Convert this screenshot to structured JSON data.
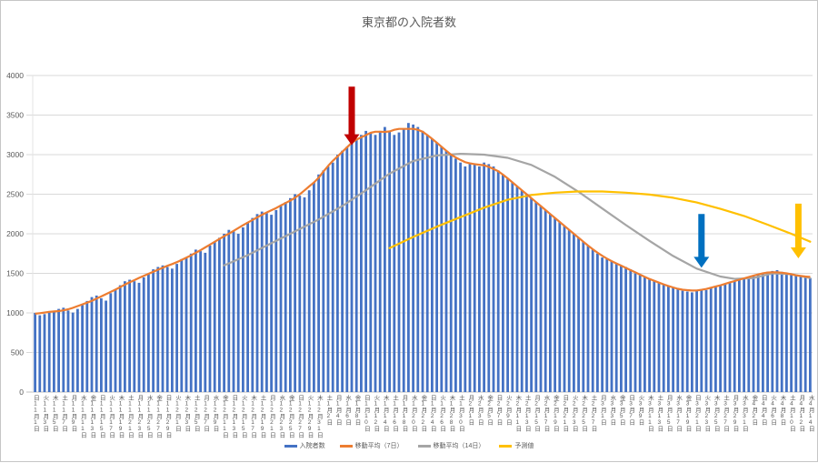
{
  "title": "東京都の入院者数",
  "chart_data": {
    "type": "bar",
    "title": "東京都の入院者数",
    "xlabel": "",
    "ylabel": "",
    "ylim": [
      0,
      4000
    ],
    "y_ticks": [
      0,
      500,
      1000,
      1500,
      2000,
      2500,
      3000,
      3500,
      4000
    ],
    "grid": "horizontal",
    "legend_position": "bottom",
    "x_start_date": "11月1日",
    "x_end_date": "4月14日",
    "x_tick_labels": [
      "日11月1日",
      "火11月3日",
      "木11月5日",
      "土11月7日",
      "月11月9日",
      "水11月11日",
      "金11月13日",
      "日11月15日",
      "火11月17日",
      "木11月19日",
      "土11月21日",
      "月11月23日",
      "水11月25日",
      "金11月27日",
      "日11月29日",
      "火12月1日",
      "木12月3日",
      "土12月5日",
      "月12月7日",
      "水12月9日",
      "金12月11日",
      "日12月13日",
      "火12月15日",
      "木12月17日",
      "土12月19日",
      "月12月21日",
      "水12月23日",
      "金12月25日",
      "日12月27日",
      "火12月29日",
      "木12月31日",
      "土1月2日",
      "月1月4日",
      "水1月6日",
      "金1月8日",
      "日1月10日",
      "火1月12日",
      "木1月14日",
      "土1月16日",
      "月1月18日",
      "水1月20日",
      "金1月22日",
      "日1月24日",
      "火1月26日",
      "木1月28日",
      "土1月30日",
      "月2月1日",
      "水2月3日",
      "金2月5日",
      "日2月7日",
      "火2月9日",
      "木2月11日",
      "土2月13日",
      "月2月15日",
      "水2月17日",
      "金2月19日",
      "日2月21日",
      "火2月23日",
      "木2月25日",
      "土2月27日",
      "月3月1日",
      "水3月3日",
      "金3月5日",
      "日3月7日",
      "火3月9日",
      "木3月11日",
      "土3月13日",
      "月3月15日",
      "水3月17日",
      "金3月19日",
      "日3月21日",
      "火3月23日",
      "木3月25日",
      "土3月27日",
      "月3月29日",
      "水3月31日",
      "金4月2日",
      "日4月4日",
      "火4月6日",
      "木4月8日",
      "土4月10日",
      "月4月12日",
      "水4月14日"
    ],
    "series": [
      {
        "name": "入院者数",
        "type": "bar",
        "color": "#4472C4",
        "values": [
          1000,
          970,
          985,
          1005,
          1020,
          1050,
          1065,
          1030,
          1005,
          1050,
          1100,
          1150,
          1200,
          1220,
          1185,
          1155,
          1250,
          1300,
          1350,
          1400,
          1420,
          1400,
          1380,
          1450,
          1500,
          1550,
          1580,
          1600,
          1580,
          1560,
          1620,
          1680,
          1700,
          1750,
          1800,
          1780,
          1760,
          1850,
          1900,
          1950,
          2000,
          2050,
          2030,
          2000,
          2080,
          2150,
          2200,
          2250,
          2280,
          2260,
          2240,
          2300,
          2350,
          2400,
          2450,
          2500,
          2480,
          2460,
          2550,
          2650,
          2750,
          2800,
          2850,
          2900,
          3000,
          3050,
          3100,
          3150,
          3200,
          3250,
          3300,
          3280,
          3250,
          3300,
          3350,
          3300,
          3250,
          3280,
          3320,
          3400,
          3380,
          3350,
          3300,
          3250,
          3200,
          3150,
          3100,
          3050,
          3000,
          2950,
          2900,
          2850,
          2900,
          2880,
          2850,
          2900,
          2880,
          2850,
          2800,
          2750,
          2700,
          2650,
          2600,
          2550,
          2500,
          2450,
          2400,
          2350,
          2300,
          2250,
          2200,
          2150,
          2100,
          2050,
          2000,
          1950,
          1900,
          1850,
          1800,
          1750,
          1700,
          1680,
          1650,
          1620,
          1600,
          1580,
          1550,
          1500,
          1480,
          1450,
          1430,
          1400,
          1380,
          1360,
          1340,
          1320,
          1300,
          1280,
          1270,
          1260,
          1280,
          1300,
          1290,
          1310,
          1330,
          1350,
          1370,
          1390,
          1400,
          1420,
          1440,
          1450,
          1470,
          1490,
          1500,
          1520,
          1530,
          1540,
          1520,
          1500,
          1480,
          1470,
          1460,
          1450,
          1440
        ]
      },
      {
        "name": "移動平均（7日）",
        "type": "line",
        "color": "#ED7D31",
        "derived_from": "入院者数",
        "window": 7
      },
      {
        "name": "移動平均（14日）",
        "type": "line",
        "color": "#A5A5A5",
        "points": [
          [
            40,
            1600
          ],
          [
            45,
            1730
          ],
          [
            50,
            1880
          ],
          [
            55,
            2030
          ],
          [
            60,
            2180
          ],
          [
            65,
            2350
          ],
          [
            70,
            2550
          ],
          [
            75,
            2760
          ],
          [
            80,
            2920
          ],
          [
            85,
            2990
          ],
          [
            90,
            3010
          ],
          [
            95,
            3000
          ],
          [
            100,
            2960
          ],
          [
            105,
            2870
          ],
          [
            110,
            2720
          ],
          [
            115,
            2530
          ],
          [
            120,
            2320
          ],
          [
            125,
            2110
          ],
          [
            130,
            1910
          ],
          [
            135,
            1720
          ],
          [
            140,
            1560
          ],
          [
            145,
            1460
          ],
          [
            148,
            1430
          ],
          [
            152,
            1440
          ],
          [
            156,
            1500
          ],
          [
            160,
            1490
          ],
          [
            164,
            1440
          ]
        ]
      },
      {
        "name": "予測値",
        "type": "line",
        "color": "#FFC000",
        "points": [
          [
            75,
            1820
          ],
          [
            80,
            1960
          ],
          [
            85,
            2090
          ],
          [
            90,
            2210
          ],
          [
            95,
            2330
          ],
          [
            100,
            2430
          ],
          [
            105,
            2490
          ],
          [
            110,
            2520
          ],
          [
            115,
            2535
          ],
          [
            120,
            2535
          ],
          [
            125,
            2520
          ],
          [
            130,
            2495
          ],
          [
            135,
            2455
          ],
          [
            140,
            2395
          ],
          [
            145,
            2315
          ],
          [
            150,
            2225
          ],
          [
            155,
            2115
          ],
          [
            160,
            2000
          ],
          [
            164,
            1900
          ]
        ]
      }
    ],
    "annotations": [
      {
        "shape": "down-arrow",
        "color": "#C00000",
        "day_index": 67,
        "from_value": 3860,
        "to_value": 3120
      },
      {
        "shape": "down-arrow",
        "color": "#0070C0",
        "day_index": 141,
        "from_value": 2250,
        "to_value": 1570
      },
      {
        "shape": "down-arrow",
        "color": "#FFC000",
        "day_index": 161.5,
        "from_value": 2380,
        "to_value": 1690
      }
    ],
    "legend": [
      {
        "label": "入院者数",
        "color": "#4472C4"
      },
      {
        "label": "移動平均（7日）",
        "color": "#ED7D31"
      },
      {
        "label": "移動平均（14日）",
        "color": "#A5A5A5"
      },
      {
        "label": "予測値",
        "color": "#FFC000"
      }
    ]
  },
  "colors": {
    "bar": "#4472C4",
    "line_orange": "#ED7D31",
    "line_gray": "#A5A5A5",
    "line_yellow": "#FFC000",
    "gridline": "#D9D9D9",
    "axis_text": "#595959"
  }
}
